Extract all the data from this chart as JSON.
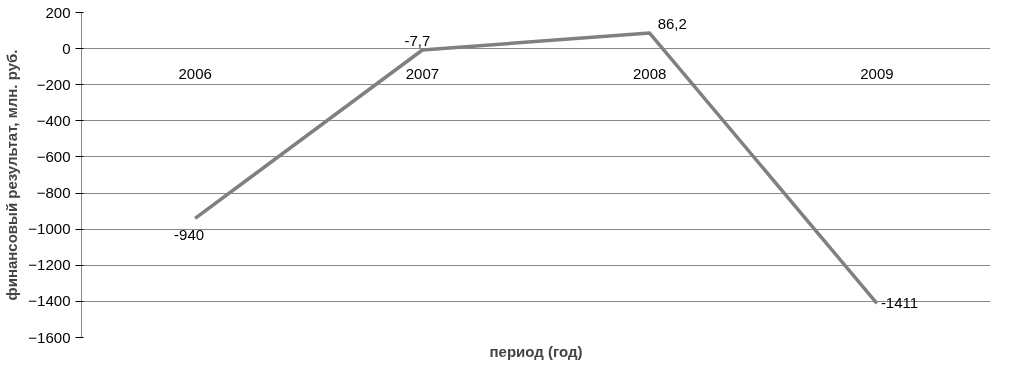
{
  "chart_data": {
    "type": "line",
    "xlabel": "период (год)",
    "ylabel": "финансовый результат, млн. руб.",
    "categories": [
      "2006",
      "2007",
      "2008",
      "2009"
    ],
    "series": [
      {
        "color": "#808080",
        "values": [
          -940,
          -7.7,
          86.2,
          -1411
        ],
        "value_labels": [
          "-940",
          "-7,7",
          "86,2",
          "-1411"
        ]
      }
    ],
    "ylim": [
      -1600,
      200
    ],
    "yticks": [
      -1600,
      -1400,
      -1200,
      -1000,
      -800,
      -600,
      -400,
      -200,
      0,
      200
    ],
    "grid": "y",
    "marker": "none",
    "line_style": "solid"
  }
}
